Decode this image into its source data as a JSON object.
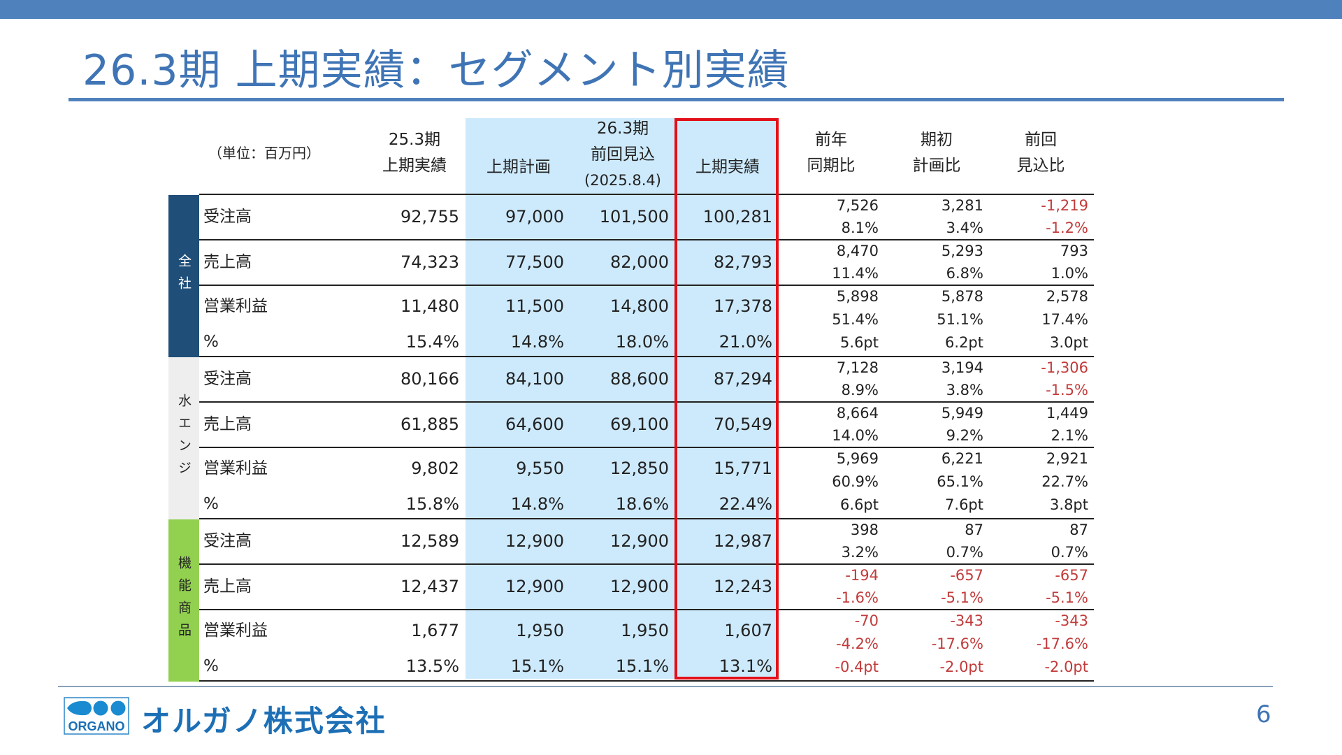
{
  "title": "26.3期 上期実績：セグメント別実績",
  "header": {
    "unit": "（単位：百万円）",
    "col1": [
      "25.3期",
      "上期実績"
    ],
    "col2": [
      "上期計画"
    ],
    "col3": [
      "26.3期",
      "前回見込",
      "(2025.8.4)"
    ],
    "col4": [
      "上期実績"
    ],
    "diff1": [
      "前年",
      "同期比"
    ],
    "diff2": [
      "期初",
      "計画比"
    ],
    "diff3": [
      "前回",
      "見込比"
    ]
  },
  "colors": {
    "accent": "#4f81bd",
    "highlight_border": "#e2101a",
    "plan_bg": "#cdeafc",
    "negative": "#c23b3b"
  },
  "groups": [
    {
      "segment": "全社",
      "bg": "#1f4e79",
      "fg": "#ffffff",
      "rows": [
        {
          "label": "受注高",
          "values": [
            "92,755",
            "97,000",
            "101,500",
            "100,281"
          ],
          "diffs": [
            [
              "7,526",
              "8.1%"
            ],
            [
              "3,281",
              "3.4%"
            ],
            [
              "-1,219",
              "-1.2%"
            ]
          ]
        },
        {
          "label": "売上高",
          "values": [
            "74,323",
            "77,500",
            "82,000",
            "82,793"
          ],
          "diffs": [
            [
              "8,470",
              "11.4%"
            ],
            [
              "5,293",
              "6.8%"
            ],
            [
              "793",
              "1.0%"
            ]
          ]
        },
        {
          "label": "営業利益",
          "values": [
            "11,480",
            "11,500",
            "14,800",
            "17,378"
          ],
          "pct_label": "%",
          "pct": [
            "15.4%",
            "14.8%",
            "18.0%",
            "21.0%"
          ],
          "diffs": [
            [
              "5,898",
              "51.4%",
              "5.6pt"
            ],
            [
              "5,878",
              "51.1%",
              "6.2pt"
            ],
            [
              "2,578",
              "17.4%",
              "3.0pt"
            ]
          ]
        }
      ]
    },
    {
      "segment": "水エンジ",
      "bg": "#eeeeee",
      "fg": "#222222",
      "rows": [
        {
          "label": "受注高",
          "values": [
            "80,166",
            "84,100",
            "88,600",
            "87,294"
          ],
          "diffs": [
            [
              "7,128",
              "8.9%"
            ],
            [
              "3,194",
              "3.8%"
            ],
            [
              "-1,306",
              "-1.5%"
            ]
          ]
        },
        {
          "label": "売上高",
          "values": [
            "61,885",
            "64,600",
            "69,100",
            "70,549"
          ],
          "diffs": [
            [
              "8,664",
              "14.0%"
            ],
            [
              "5,949",
              "9.2%"
            ],
            [
              "1,449",
              "2.1%"
            ]
          ]
        },
        {
          "label": "営業利益",
          "values": [
            "9,802",
            "9,550",
            "12,850",
            "15,771"
          ],
          "pct_label": "%",
          "pct": [
            "15.8%",
            "14.8%",
            "18.6%",
            "22.4%"
          ],
          "diffs": [
            [
              "5,969",
              "60.9%",
              "6.6pt"
            ],
            [
              "6,221",
              "65.1%",
              "7.6pt"
            ],
            [
              "2,921",
              "22.7%",
              "3.8pt"
            ]
          ]
        }
      ]
    },
    {
      "segment": "機能商品",
      "bg": "#92d050",
      "fg": "#222222",
      "rows": [
        {
          "label": "受注高",
          "values": [
            "12,589",
            "12,900",
            "12,900",
            "12,987"
          ],
          "diffs": [
            [
              "398",
              "3.2%"
            ],
            [
              "87",
              "0.7%"
            ],
            [
              "87",
              "0.7%"
            ]
          ]
        },
        {
          "label": "売上高",
          "values": [
            "12,437",
            "12,900",
            "12,900",
            "12,243"
          ],
          "diffs": [
            [
              "-194",
              "-1.6%"
            ],
            [
              "-657",
              "-5.1%"
            ],
            [
              "-657",
              "-5.1%"
            ]
          ]
        },
        {
          "label": "営業利益",
          "values": [
            "1,677",
            "1,950",
            "1,950",
            "1,607"
          ],
          "pct_label": "%",
          "pct": [
            "13.5%",
            "15.1%",
            "15.1%",
            "13.1%"
          ],
          "diffs": [
            [
              "-70",
              "-4.2%",
              "-0.4pt"
            ],
            [
              "-343",
              "-17.6%",
              "-2.0pt"
            ],
            [
              "-343",
              "-17.6%",
              "-2.0pt"
            ]
          ]
        }
      ]
    }
  ],
  "footer": {
    "logo_text": "ORGANO",
    "company": "オルガノ株式会社",
    "page": "6"
  }
}
